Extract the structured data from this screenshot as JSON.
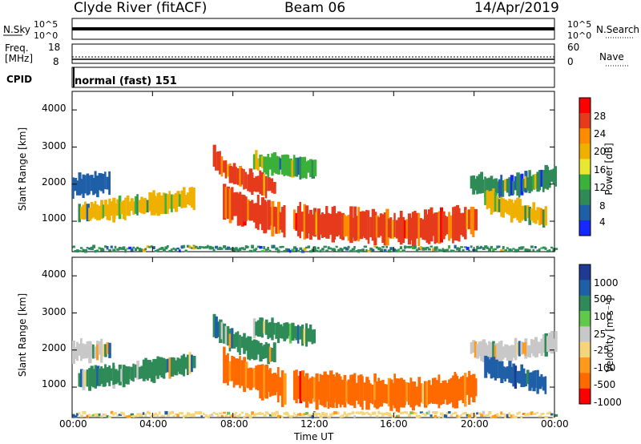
{
  "header": {
    "station": "Clyde River (fitACF)",
    "beam": "Beam 06",
    "date": "14/Apr/2019"
  },
  "panels": {
    "nsky": {
      "label": "N.Sky",
      "right_label": "N.Search",
      "ticks": [
        "10^5",
        "10^0"
      ]
    },
    "freq": {
      "label_line1": "Freq.",
      "label_line2": "[MHz]",
      "ticks_left": [
        "18",
        "8"
      ],
      "ticks_right": [
        "60",
        "0"
      ],
      "right_label": "Nave"
    },
    "cpid": {
      "label": "CPID",
      "value": "normal (fast) 151"
    }
  },
  "colorbars": {
    "power": {
      "label": "Power [dB]",
      "ticks": [
        "28",
        "24",
        "20",
        "16",
        "12",
        "8",
        "4"
      ],
      "colors": [
        "#ff0000",
        "#e53a1c",
        "#ff8c00",
        "#f0b000",
        "#e8e830",
        "#3bb03b",
        "#2e8b57",
        "#1f5fa8",
        "#1428ff"
      ]
    },
    "velocity": {
      "label": "Velocity [m s⁻¹]",
      "ticks": [
        "1000",
        "500",
        "100",
        "25",
        "-25",
        "-100",
        "-500",
        "-1000"
      ],
      "colors": [
        "#1f3a93",
        "#1f5fa8",
        "#2e8b57",
        "#5ec94a",
        "#c8c8c8",
        "#f5d57a",
        "#ff9a1a",
        "#ff6a00",
        "#ff0000"
      ]
    }
  },
  "chart_data": [
    {
      "type": "heatmap",
      "title": "Power",
      "xlabel": "Time UT",
      "ylabel": "Slant Range [km]",
      "xlim": [
        0,
        24
      ],
      "ylim": [
        180,
        4500
      ],
      "x_tick_labels": [
        "00:00",
        "04:00",
        "08:00",
        "12:00",
        "16:00",
        "20:00",
        "00:00"
      ],
      "y_tick_labels": [
        "1000",
        "2000",
        "3000",
        "4000"
      ],
      "colorbar": "power",
      "series": [
        {
          "x": [
            0.3,
            2.0,
            4.0,
            6.0
          ],
          "y": [
            1220,
            1320,
            1480,
            1620
          ],
          "value": 14
        },
        {
          "x": [
            0.0,
            1.2,
            1.8
          ],
          "y": [
            1950,
            2000,
            2050
          ],
          "value": 8
        },
        {
          "x": [
            7.0,
            7.8,
            8.8,
            10.0
          ],
          "y": [
            2700,
            2300,
            2050,
            1900
          ],
          "value": 22
        },
        {
          "x": [
            7.5,
            8.5,
            9.5,
            10.5
          ],
          "y": [
            1550,
            1300,
            1150,
            1000
          ],
          "value": 24
        },
        {
          "x": [
            11.0,
            13.0,
            15.0,
            17.0,
            19.0,
            20.0
          ],
          "y": [
            1000,
            900,
            850,
            820,
            900,
            1050
          ],
          "value": 22
        },
        {
          "x": [
            19.8,
            21.0,
            22.5,
            24.0
          ],
          "y": [
            2050,
            1900,
            2000,
            2200
          ],
          "value": 10
        },
        {
          "x": [
            20.5,
            22.0,
            23.5
          ],
          "y": [
            1600,
            1300,
            1100
          ],
          "value": 14
        },
        {
          "x": [
            9.0,
            10.5,
            12.0
          ],
          "y": [
            2600,
            2500,
            2400
          ],
          "value": 12
        },
        {
          "x": [
            0.0,
            6.0,
            12.0,
            18.0,
            24.0
          ],
          "y": [
            250,
            260,
            250,
            260,
            250
          ],
          "value": 10
        }
      ]
    },
    {
      "type": "heatmap",
      "title": "Velocity",
      "xlabel": "Time UT",
      "ylabel": "Slant Range [km]",
      "xlim": [
        0,
        24
      ],
      "ylim": [
        180,
        4500
      ],
      "x_tick_labels": [
        "00:00",
        "04:00",
        "08:00",
        "12:00",
        "16:00",
        "20:00",
        "00:00"
      ],
      "y_tick_labels": [
        "1000",
        "2000",
        "3000",
        "4000"
      ],
      "colorbar": "velocity",
      "series": [
        {
          "x": [
            0.3,
            2.0,
            4.0,
            6.0
          ],
          "y": [
            1220,
            1320,
            1480,
            1620
          ],
          "value": 80
        },
        {
          "x": [
            0.0,
            1.2,
            1.8
          ],
          "y": [
            1950,
            2000,
            2050
          ],
          "value": 0
        },
        {
          "x": [
            7.0,
            7.8,
            8.8,
            10.0
          ],
          "y": [
            2700,
            2300,
            2050,
            1900
          ],
          "value": 50
        },
        {
          "x": [
            7.5,
            8.5,
            9.5,
            10.5
          ],
          "y": [
            1550,
            1300,
            1150,
            1000
          ],
          "value": -350
        },
        {
          "x": [
            11.0,
            13.0,
            15.0,
            17.0,
            19.0,
            20.0
          ],
          "y": [
            1000,
            900,
            850,
            820,
            900,
            1050
          ],
          "value": -300
        },
        {
          "x": [
            19.8,
            21.0,
            22.5,
            24.0
          ],
          "y": [
            2050,
            1900,
            2000,
            2200
          ],
          "value": 0
        },
        {
          "x": [
            20.5,
            22.0,
            23.5
          ],
          "y": [
            1600,
            1300,
            1100
          ],
          "value": 300
        },
        {
          "x": [
            9.0,
            10.5,
            12.0
          ],
          "y": [
            2600,
            2500,
            2400
          ],
          "value": 60
        },
        {
          "x": [
            0.0,
            6.0,
            12.0,
            18.0,
            24.0
          ],
          "y": [
            250,
            260,
            250,
            260,
            250
          ],
          "value": -60
        }
      ]
    }
  ]
}
